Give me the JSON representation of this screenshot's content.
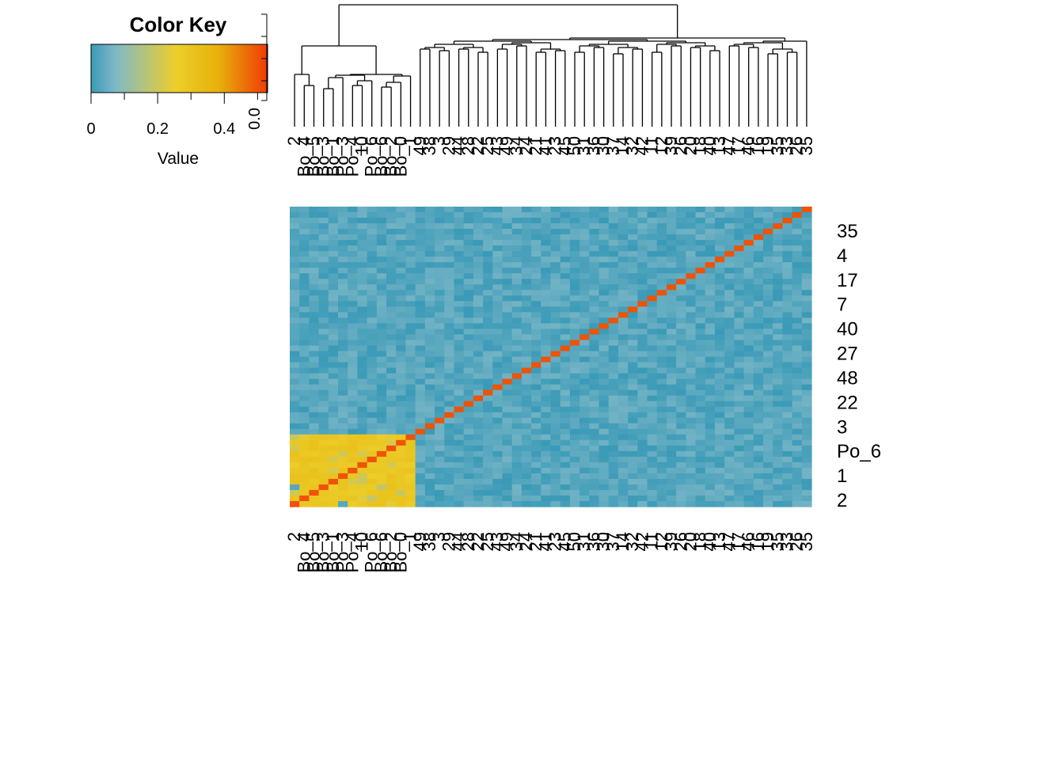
{
  "chart_data": {
    "type": "heatmap",
    "color_key": {
      "title": "Color Key",
      "xlabel": "Value",
      "ticks": [
        0,
        0.2,
        0.4
      ],
      "tick_labels": [
        "0",
        "0.2",
        "0.4"
      ],
      "range": [
        0,
        0.53
      ],
      "colors": [
        "#3a9ab7",
        "#80b9c8",
        "#ecce2b",
        "#e7b10a",
        "#f03b06"
      ],
      "histogram_ylabel": "0.0"
    },
    "row_labels": [
      "35",
      "4",
      "17",
      "7",
      "40",
      "27",
      "48",
      "22",
      "3",
      "Po_6",
      "1",
      "2"
    ],
    "column_labels": [
      "2",
      "Bo_4",
      "Bo_5",
      "Bo_3",
      "Bo_1",
      "Po_3",
      "Po_4",
      "10",
      "Po_6",
      "Bo_6",
      "Bo_2",
      "Bo_0",
      "1",
      "49",
      "38",
      "3",
      "29",
      "44",
      "28",
      "22",
      "25",
      "43",
      "49",
      "34",
      "24",
      "21",
      "41",
      "23",
      "45",
      "50",
      "31",
      "36",
      "30",
      "37",
      "14",
      "32",
      "42",
      "11",
      "12",
      "39",
      "26",
      "20",
      "18",
      "40",
      "13",
      "47",
      "17",
      "46",
      "16",
      "19",
      "35",
      "33",
      "26",
      "35"
    ],
    "cluster_size": 13,
    "n": 54,
    "values": {
      "diagonal": 0.5,
      "within_cluster": [
        0.26,
        0.31
      ],
      "between_clusters": [
        0.0,
        0.06
      ]
    },
    "dendrogram": true,
    "grid": false
  }
}
